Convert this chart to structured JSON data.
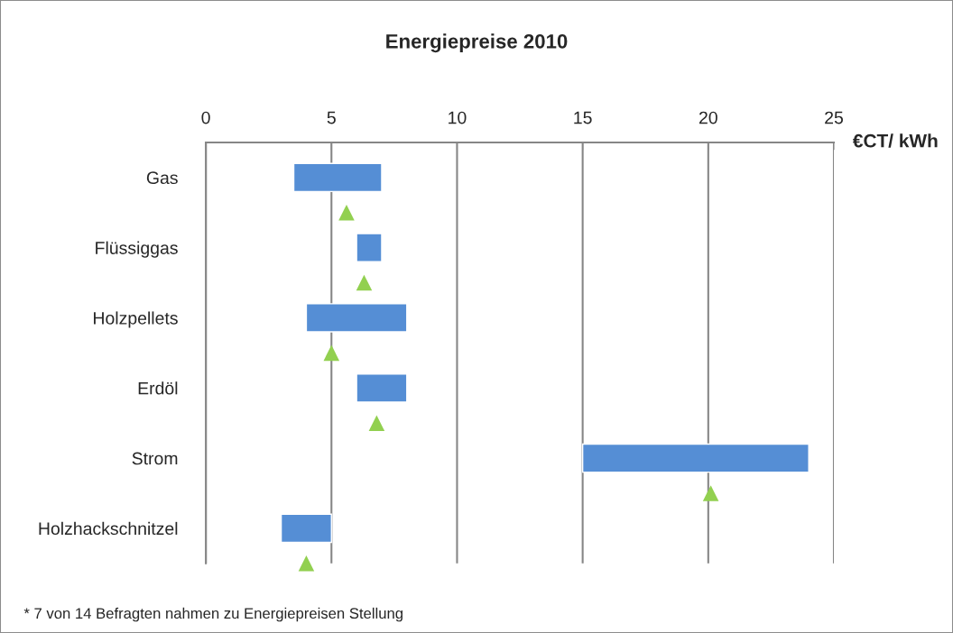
{
  "chart_data": {
    "type": "bar",
    "orientation": "horizontal",
    "title": "Energiepreise 2010",
    "xlabel": "€CT/ kWh",
    "categories": [
      "Gas",
      "Flüssiggas",
      "Holzpellets",
      "Erdöl",
      "Strom",
      "Holzhackschnitzel"
    ],
    "series": [
      {
        "type": "bar",
        "color": "#558ed5",
        "base": [
          3.5,
          6,
          4,
          6,
          15,
          3
        ],
        "values": [
          3.5,
          1,
          4,
          2,
          9,
          2
        ]
      },
      {
        "type": "scatter",
        "color": "#92d050",
        "marker": "triangle",
        "values": [
          5.6,
          6.3,
          5.0,
          6.8,
          20.1,
          4.0
        ]
      }
    ],
    "xlim": [
      0,
      25
    ],
    "xticks": [
      0,
      5,
      10,
      15,
      20,
      25
    ],
    "grid": "x",
    "legend": false,
    "annotations": [
      "* 7 von 14 Befragten nahmen zu Energiepreisen Stellung"
    ]
  }
}
